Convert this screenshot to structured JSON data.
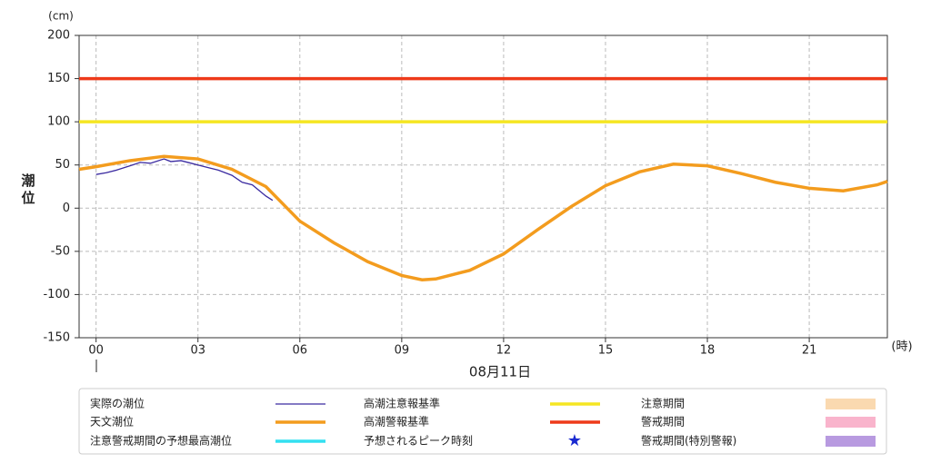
{
  "chart_data": {
    "type": "line",
    "y_unit": "(cm)",
    "y_label": "潮位",
    "x_unit": "(時)",
    "x_label": "08月11日",
    "xlim": [
      -0.5,
      23.3
    ],
    "xticks": [
      {
        "value": 0,
        "label": "00"
      },
      {
        "value": 3,
        "label": "03"
      },
      {
        "value": 6,
        "label": "06"
      },
      {
        "value": 9,
        "label": "09"
      },
      12,
      15,
      18,
      21
    ],
    "ylim": [
      -150,
      200
    ],
    "yticks": [
      -150,
      -100,
      -50,
      0,
      50,
      100,
      150,
      200
    ],
    "grid": true,
    "series": [
      {
        "name": "実際の潮位",
        "color": "#3a2aa0",
        "width": 1.3,
        "x": [
          0,
          0.3,
          0.6,
          1,
          1.3,
          1.6,
          2,
          2.2,
          2.5,
          2.8,
          3,
          3.3,
          3.6,
          4,
          4.3,
          4.6,
          5,
          5.2
        ],
        "values": [
          39,
          41,
          44,
          49,
          53,
          52,
          57,
          54,
          55,
          52,
          50,
          47,
          44,
          38,
          30,
          27,
          14,
          9
        ]
      },
      {
        "name": "天文潮位",
        "color": "#f39c1e",
        "width": 3.5,
        "x": [
          -0.5,
          0,
          1,
          2,
          3,
          4,
          5,
          6,
          7,
          8,
          9,
          9.6,
          10,
          11,
          12,
          13,
          14,
          15,
          16,
          17,
          18,
          19,
          20,
          21,
          22,
          23,
          23.3
        ],
        "values": [
          45,
          48,
          55,
          60,
          57,
          45,
          25,
          -15,
          -40,
          -62,
          -78,
          -83,
          -82,
          -72,
          -53,
          -25,
          2,
          26,
          42,
          51,
          49,
          40,
          30,
          23,
          20,
          27,
          31
        ]
      },
      {
        "name": "高潮注意報基準",
        "color": "#f5e622",
        "width": 3.5,
        "x": [
          -0.5,
          23.3
        ],
        "values": [
          100,
          100
        ]
      },
      {
        "name": "高潮警報基準",
        "color": "#ee3a1a",
        "width": 3.5,
        "x": [
          -0.5,
          23.3
        ],
        "values": [
          150,
          150
        ]
      }
    ],
    "legend_extra": [
      {
        "name": "注意警戒期間の予想最高潮位",
        "color": "#33e0f0",
        "symbol": "line"
      },
      {
        "name": "予想されるピーク時刻",
        "color": "#1a2ad0",
        "symbol": "star"
      },
      {
        "name": "注意期間",
        "color": "#fad9b0",
        "symbol": "rect"
      },
      {
        "name": "警戒期間",
        "color": "#f9b4cc",
        "symbol": "rect"
      },
      {
        "name": "警戒期間(特別警報)",
        "color": "#b89ae0",
        "symbol": "rect"
      }
    ]
  }
}
